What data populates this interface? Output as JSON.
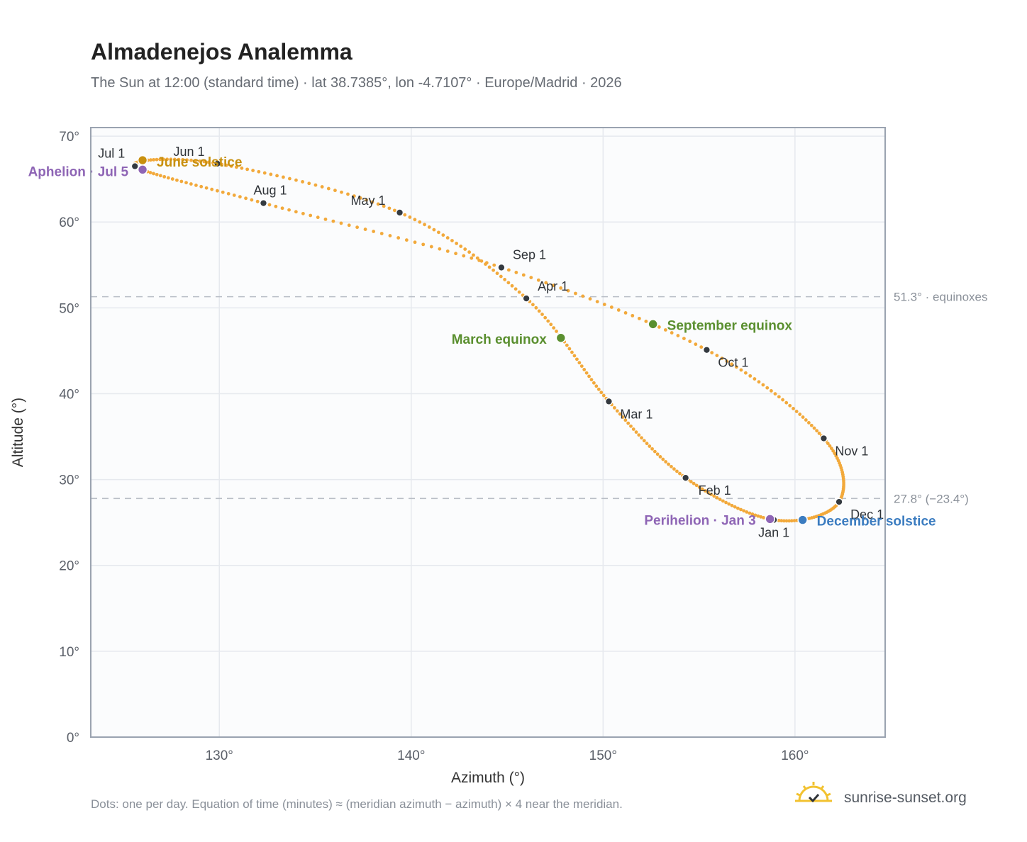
{
  "chart_data": {
    "type": "scatter",
    "title": "Almadenejos Analemma",
    "subtitle": "The Sun at 12:00 (standard time) · lat 38.7385°, lon -4.7107° · Europe/Madrid · 2026",
    "xlabel": "Azimuth (°)",
    "ylabel": "Altitude (°)",
    "xlim": [
      123.3,
      164.7
    ],
    "ylim": [
      0,
      71
    ],
    "x_ticks": [
      130,
      140,
      150,
      160
    ],
    "x_tick_labels": [
      "130°",
      "140°",
      "150°",
      "160°"
    ],
    "y_ticks": [
      0,
      10,
      20,
      30,
      40,
      50,
      60,
      70
    ],
    "y_tick_labels": [
      "0°",
      "10°",
      "20°",
      "30°",
      "40°",
      "50°",
      "60°",
      "70°"
    ],
    "grid": true,
    "curve_color": "#f2a93b",
    "month_marker_color": "#343a40",
    "month_markers": [
      {
        "label": "Jan 1",
        "x": 158.9,
        "y": 25.3
      },
      {
        "label": "Feb 1",
        "x": 154.3,
        "y": 30.2
      },
      {
        "label": "Mar 1",
        "x": 150.3,
        "y": 39.1
      },
      {
        "label": "Apr 1",
        "x": 146.0,
        "y": 51.1
      },
      {
        "label": "May 1",
        "x": 139.4,
        "y": 61.1
      },
      {
        "label": "Jun 1",
        "x": 129.9,
        "y": 66.8
      },
      {
        "label": "Jul 1",
        "x": 125.6,
        "y": 66.5
      },
      {
        "label": "Aug 1",
        "x": 132.3,
        "y": 62.2
      },
      {
        "label": "Sep 1",
        "x": 144.7,
        "y": 54.7
      },
      {
        "label": "Oct 1",
        "x": 155.4,
        "y": 45.1
      },
      {
        "label": "Nov 1",
        "x": 161.5,
        "y": 34.8
      },
      {
        "label": "Dec 1",
        "x": 162.3,
        "y": 27.4
      }
    ],
    "events": [
      {
        "label": "June solstice",
        "x": 126.0,
        "y": 67.2,
        "color": "#c8900f"
      },
      {
        "label": "Aphelion · Jul 5",
        "x": 126.0,
        "y": 66.1,
        "color": "#8e65b5"
      },
      {
        "label": "March equinox",
        "x": 147.8,
        "y": 46.5,
        "color": "#5a8f2f"
      },
      {
        "label": "September equinox",
        "x": 152.6,
        "y": 48.1,
        "color": "#5a8f2f"
      },
      {
        "label": "Perihelion · Jan 3",
        "x": 158.7,
        "y": 25.4,
        "color": "#8e65b5"
      },
      {
        "label": "December solstice",
        "x": 160.4,
        "y": 25.3,
        "color": "#3b7cc0"
      }
    ],
    "reference_lines": [
      {
        "y": 51.3,
        "label": "51.3° · equinoxes"
      },
      {
        "y": 27.8,
        "label": "27.8° (−23.4°)"
      }
    ]
  },
  "footer": {
    "note": "Dots: one per day. Equation of time (minutes) ≈ (meridian azimuth − azimuth) × 4 near the meridian.",
    "brand": "sunrise-sunset.org"
  },
  "icons": {
    "brand_logo": "sun-check-icon"
  },
  "colors": {
    "brand_sun": "#f2c230",
    "plot_bg": "#fbfcfd",
    "frame": "#9aa3b0"
  }
}
